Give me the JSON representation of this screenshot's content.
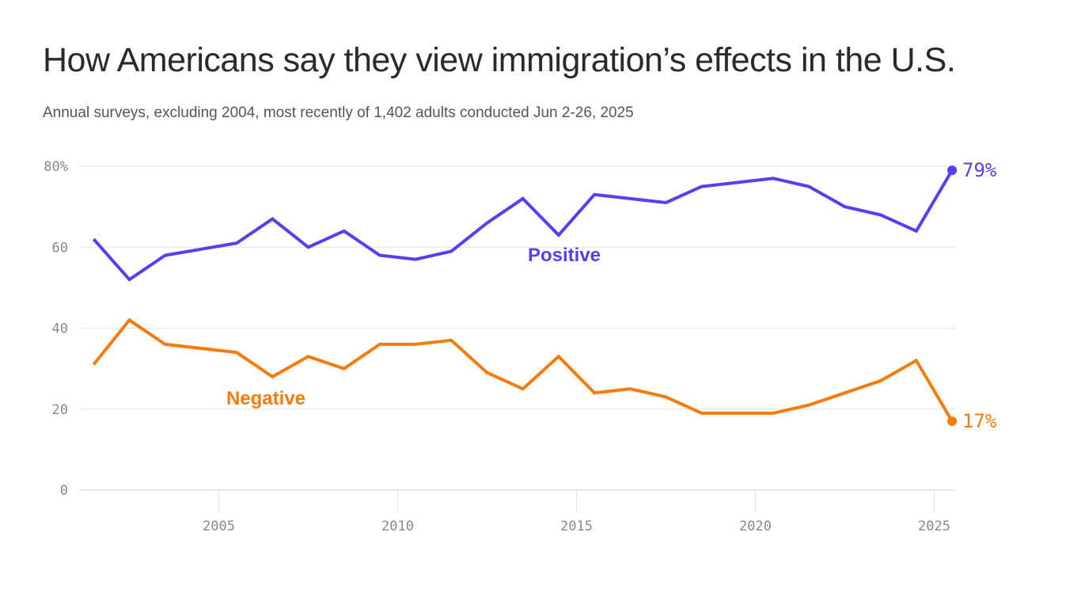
{
  "header": {
    "title": "How Americans say they view immigration’s effects in the U.S.",
    "subtitle": "Annual surveys, excluding 2004, most recently of 1,402 adults conducted Jun 2-26, 2025"
  },
  "colors": {
    "positive": "#5b3cf0",
    "negative": "#f57c0a",
    "grid": "#e2e2e2",
    "axis_text": "#888888"
  },
  "chart_data": {
    "type": "line",
    "title": "How Americans say they view immigration’s effects in the U.S.",
    "subtitle": "Annual surveys, excluding 2004, most recently of 1,402 adults conducted Jun 2-26, 2025",
    "xlabel": "",
    "ylabel": "",
    "x": [
      2001,
      2002,
      2003,
      2005,
      2006,
      2007,
      2008,
      2009,
      2010,
      2011,
      2012,
      2013,
      2014,
      2015,
      2016,
      2017,
      2018,
      2019,
      2020,
      2021,
      2022,
      2023,
      2024,
      2025
    ],
    "series": [
      {
        "name": "Positive",
        "values": [
          62,
          52,
          58,
          61,
          67,
          60,
          64,
          58,
          57,
          59,
          66,
          72,
          63,
          73,
          72,
          71,
          75,
          76,
          77,
          75,
          70,
          68,
          64,
          79
        ],
        "end_label": "79%"
      },
      {
        "name": "Negative",
        "values": [
          31,
          42,
          36,
          34,
          28,
          33,
          30,
          36,
          36,
          37,
          29,
          25,
          33,
          24,
          25,
          23,
          19,
          19,
          19,
          21,
          24,
          27,
          32,
          17
        ],
        "end_label": "17%"
      }
    ],
    "ylim": [
      0,
      80
    ],
    "xlim": [
      2001,
      2025.6
    ],
    "y_ticks": [
      0,
      20,
      40,
      60,
      80
    ],
    "y_tick_labels": [
      "0",
      "20",
      "40",
      "60",
      "80%"
    ],
    "x_ticks": [
      2005,
      2010,
      2015,
      2020,
      2025
    ],
    "x_tick_labels": [
      "2005",
      "2010",
      "2015",
      "2020",
      "2025"
    ],
    "grid": true,
    "legend": "inline labels"
  }
}
